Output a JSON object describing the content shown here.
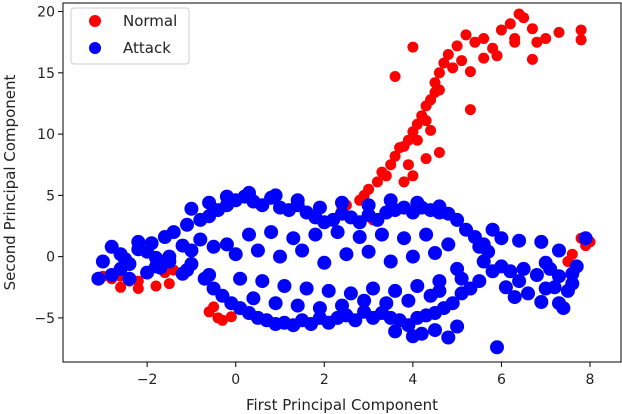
{
  "chart_data": {
    "type": "scatter",
    "title": "",
    "xlabel": "First Principal Component",
    "ylabel": "Second Principal Component",
    "xlim": [
      -3.9,
      8.7
    ],
    "ylim": [
      -8.6,
      20.7
    ],
    "xticks": [
      -2,
      0,
      2,
      4,
      6,
      8
    ],
    "yticks": [
      -5,
      0,
      5,
      10,
      15,
      20
    ],
    "legend_position": "top-left",
    "grid": false,
    "series": [
      {
        "name": "Normal",
        "color": "#ff0000",
        "points": [
          [
            5.0,
            17.2
          ],
          [
            5.2,
            18.1
          ],
          [
            5.4,
            17.5
          ],
          [
            5.6,
            16.2
          ],
          [
            5.8,
            17.0
          ],
          [
            6.0,
            18.5
          ],
          [
            6.2,
            19.0
          ],
          [
            6.4,
            19.8
          ],
          [
            6.5,
            19.5
          ],
          [
            6.7,
            18.6
          ],
          [
            7.0,
            17.8
          ],
          [
            7.3,
            18.3
          ],
          [
            7.8,
            18.5
          ],
          [
            7.8,
            17.7
          ],
          [
            4.8,
            16.5
          ],
          [
            4.7,
            15.8
          ],
          [
            4.6,
            15.0
          ],
          [
            4.5,
            14.2
          ],
          [
            4.5,
            13.4
          ],
          [
            4.4,
            12.8
          ],
          [
            4.3,
            12.3
          ],
          [
            4.2,
            11.5
          ],
          [
            4.1,
            10.8
          ],
          [
            4.0,
            10.2
          ],
          [
            3.9,
            9.5
          ],
          [
            3.7,
            8.9
          ],
          [
            3.6,
            8.2
          ],
          [
            3.5,
            7.5
          ],
          [
            3.3,
            6.9
          ],
          [
            3.2,
            6.1
          ],
          [
            3.0,
            5.5
          ],
          [
            2.9,
            5.0
          ],
          [
            2.5,
            4.2
          ],
          [
            2.4,
            4.0
          ],
          [
            3.6,
            14.7
          ],
          [
            4.0,
            17.1
          ],
          [
            5.6,
            17.8
          ],
          [
            5.9,
            16.4
          ],
          [
            6.3,
            17.8
          ],
          [
            6.8,
            17.5
          ],
          [
            5.1,
            16.0
          ],
          [
            4.9,
            15.4
          ],
          [
            4.6,
            13.6
          ],
          [
            4.3,
            11.1
          ],
          [
            4.4,
            10.3
          ],
          [
            4.1,
            9.5
          ],
          [
            3.8,
            9.0
          ],
          [
            4.6,
            8.5
          ],
          [
            4.3,
            8.0
          ],
          [
            3.9,
            7.5
          ],
          [
            4.0,
            6.6
          ],
          [
            3.8,
            6.1
          ],
          [
            3.4,
            6.6
          ],
          [
            5.3,
            15.1
          ],
          [
            5.3,
            12.0
          ],
          [
            6.3,
            17.5
          ],
          [
            6.7,
            16.1
          ],
          [
            7.8,
            1.5
          ],
          [
            7.9,
            0.9
          ],
          [
            8.0,
            1.2
          ],
          [
            7.6,
            0.2
          ],
          [
            7.5,
            -0.4
          ],
          [
            -0.4,
            -5.0
          ],
          [
            -0.3,
            -5.2
          ],
          [
            -0.1,
            -4.9
          ],
          [
            -0.5,
            -4.1
          ],
          [
            -0.6,
            -4.5
          ],
          [
            -2.6,
            -2.5
          ],
          [
            -2.2,
            -2.6
          ],
          [
            -1.8,
            -2.4
          ],
          [
            -1.6,
            -1.3
          ],
          [
            -1.4,
            -1.1
          ],
          [
            -2.8,
            -1.8
          ],
          [
            -2.6,
            -1.6
          ],
          [
            -2.4,
            -2.0
          ],
          [
            -1.5,
            -2.2
          ],
          [
            -3.0,
            -1.6
          ],
          [
            -2.2,
            -2.0
          ],
          [
            2.8,
            4.6
          ],
          [
            3.1,
            3.0
          ]
        ]
      },
      {
        "name": "Attack",
        "color": "#0000ff",
        "points": [
          [
            -3.1,
            -1.8
          ],
          [
            -3.0,
            -0.4
          ],
          [
            -2.8,
            -1.5
          ],
          [
            -2.6,
            -1.0
          ],
          [
            -2.5,
            -0.2
          ],
          [
            -2.4,
            -1.8
          ],
          [
            -2.2,
            0.6
          ],
          [
            -2.0,
            -1.3
          ],
          [
            -1.9,
            1.1
          ],
          [
            -1.8,
            -0.8
          ],
          [
            -1.6,
            1.6
          ],
          [
            -1.5,
            -0.4
          ],
          [
            -1.4,
            2.0
          ],
          [
            -1.2,
            -1.4
          ],
          [
            -1.1,
            2.6
          ],
          [
            -1.0,
            -0.6
          ],
          [
            -0.8,
            3.0
          ],
          [
            -0.7,
            -1.8
          ],
          [
            -0.6,
            3.3
          ],
          [
            -0.5,
            -2.6
          ],
          [
            -0.4,
            3.8
          ],
          [
            -0.3,
            -3.2
          ],
          [
            -0.2,
            4.2
          ],
          [
            -0.1,
            -3.8
          ],
          [
            0.0,
            4.6
          ],
          [
            0.1,
            -4.2
          ],
          [
            0.2,
            4.9
          ],
          [
            0.3,
            -4.6
          ],
          [
            0.4,
            4.5
          ],
          [
            0.5,
            -5.0
          ],
          [
            0.6,
            4.2
          ],
          [
            0.7,
            -5.2
          ],
          [
            0.8,
            4.8
          ],
          [
            0.9,
            -5.5
          ],
          [
            1.0,
            4.0
          ],
          [
            1.1,
            -5.4
          ],
          [
            1.2,
            3.8
          ],
          [
            1.3,
            -5.6
          ],
          [
            1.4,
            4.2
          ],
          [
            1.5,
            -5.2
          ],
          [
            1.6,
            3.6
          ],
          [
            1.7,
            -5.5
          ],
          [
            1.8,
            3.2
          ],
          [
            1.9,
            -5.0
          ],
          [
            2.0,
            2.8
          ],
          [
            2.1,
            -5.4
          ],
          [
            2.2,
            3.0
          ],
          [
            2.3,
            -5.0
          ],
          [
            2.4,
            3.5
          ],
          [
            2.5,
            -4.8
          ],
          [
            2.6,
            3.2
          ],
          [
            2.7,
            -5.2
          ],
          [
            2.8,
            2.8
          ],
          [
            2.9,
            -4.5
          ],
          [
            3.0,
            3.4
          ],
          [
            3.1,
            -5.0
          ],
          [
            3.2,
            3.0
          ],
          [
            3.3,
            -4.6
          ],
          [
            3.4,
            3.6
          ],
          [
            3.5,
            -5.0
          ],
          [
            3.6,
            3.8
          ],
          [
            3.7,
            -5.2
          ],
          [
            3.8,
            4.0
          ],
          [
            3.9,
            -5.6
          ],
          [
            4.0,
            3.6
          ],
          [
            4.1,
            -5.0
          ],
          [
            4.2,
            4.0
          ],
          [
            4.3,
            -4.8
          ],
          [
            4.4,
            3.8
          ],
          [
            4.5,
            -4.6
          ],
          [
            4.6,
            3.6
          ],
          [
            4.7,
            -4.2
          ],
          [
            4.8,
            3.5
          ],
          [
            4.9,
            -3.8
          ],
          [
            5.0,
            3.0
          ],
          [
            5.1,
            -3.0
          ],
          [
            5.2,
            2.2
          ],
          [
            5.3,
            -2.6
          ],
          [
            5.4,
            1.6
          ],
          [
            5.5,
            -2.0
          ],
          [
            5.6,
            1.0
          ],
          [
            5.8,
            -1.2
          ],
          [
            5.6,
            -0.4
          ],
          [
            5.7,
            0.4
          ],
          [
            4.2,
            -6.3
          ],
          [
            4.5,
            -6.0
          ],
          [
            3.6,
            -6.1
          ],
          [
            4.0,
            -6.5
          ],
          [
            4.8,
            -6.6
          ],
          [
            5.0,
            -5.7
          ],
          [
            5.9,
            -7.4
          ],
          [
            6.3,
            -3.3
          ],
          [
            6.6,
            -3.0
          ],
          [
            6.9,
            -3.7
          ],
          [
            7.0,
            -2.6
          ],
          [
            7.2,
            -2.5
          ],
          [
            7.3,
            -3.8
          ],
          [
            7.4,
            -4.2
          ],
          [
            7.6,
            -1.4
          ],
          [
            7.7,
            -0.8
          ],
          [
            7.9,
            1.5
          ],
          [
            7.6,
            -2.2
          ],
          [
            7.3,
            -1.6
          ],
          [
            7.1,
            -1.0
          ],
          [
            6.4,
            -2.0
          ],
          [
            6.2,
            -1.2
          ],
          [
            6.0,
            -0.8
          ],
          [
            6.1,
            -2.5
          ],
          [
            6.5,
            -1.0
          ],
          [
            6.8,
            -1.5
          ],
          [
            7.0,
            -0.5
          ],
          [
            7.5,
            -2.8
          ],
          [
            6.4,
            1.3
          ],
          [
            6.9,
            1.2
          ],
          [
            7.3,
            0.5
          ],
          [
            6.0,
            1.5
          ],
          [
            5.8,
            2.2
          ],
          [
            5.5,
            0.8
          ],
          [
            5.0,
            -1.0
          ],
          [
            4.6,
            -2.0
          ],
          [
            -2.6,
            0.2
          ],
          [
            -2.0,
            0.4
          ],
          [
            -1.5,
            0.0
          ],
          [
            -1.0,
            0.5
          ],
          [
            -0.5,
            0.8
          ],
          [
            0.0,
            0.2
          ],
          [
            0.5,
            0.5
          ],
          [
            1.0,
            0.0
          ],
          [
            1.5,
            0.5
          ],
          [
            2.0,
            -0.5
          ],
          [
            2.5,
            0.2
          ],
          [
            3.0,
            0.4
          ],
          [
            3.5,
            -0.4
          ],
          [
            4.0,
            0.0
          ],
          [
            4.5,
            0.3
          ],
          [
            -2.8,
            0.8
          ],
          [
            -2.2,
            1.2
          ],
          [
            -1.8,
            -0.1
          ],
          [
            -1.2,
            0.9
          ],
          [
            -0.8,
            1.4
          ],
          [
            -0.2,
            1.0
          ],
          [
            0.3,
            1.8
          ],
          [
            0.8,
            2.0
          ],
          [
            1.3,
            1.5
          ],
          [
            1.8,
            1.8
          ],
          [
            2.3,
            2.0
          ],
          [
            2.8,
            1.6
          ],
          [
            3.3,
            1.8
          ],
          [
            3.8,
            1.5
          ],
          [
            4.3,
            1.8
          ],
          [
            4.8,
            1.0
          ],
          [
            -2.4,
            -0.6
          ],
          [
            -1.7,
            -0.9
          ],
          [
            -1.1,
            -1.1
          ],
          [
            -0.6,
            -1.5
          ],
          [
            0.1,
            -1.8
          ],
          [
            0.6,
            -2.0
          ],
          [
            1.1,
            -2.4
          ],
          [
            1.6,
            -2.6
          ],
          [
            2.1,
            -2.8
          ],
          [
            2.6,
            -3.0
          ],
          [
            3.1,
            -2.6
          ],
          [
            3.6,
            -2.8
          ],
          [
            4.1,
            -2.4
          ],
          [
            4.6,
            -2.8
          ],
          [
            5.1,
            -1.8
          ],
          [
            0.4,
            -3.4
          ],
          [
            0.9,
            -3.8
          ],
          [
            1.4,
            -4.0
          ],
          [
            1.9,
            -4.2
          ],
          [
            2.4,
            -4.0
          ],
          [
            2.9,
            -3.6
          ],
          [
            3.4,
            -3.8
          ],
          [
            3.9,
            -3.6
          ],
          [
            4.4,
            -3.2
          ],
          [
            -1.0,
            3.9
          ],
          [
            -0.6,
            4.4
          ],
          [
            -0.2,
            4.9
          ],
          [
            0.3,
            5.2
          ],
          [
            0.9,
            5.0
          ],
          [
            1.4,
            4.6
          ],
          [
            1.9,
            4.0
          ],
          [
            2.4,
            4.4
          ],
          [
            3.0,
            4.2
          ],
          [
            3.5,
            4.6
          ],
          [
            4.1,
            4.4
          ],
          [
            4.6,
            4.1
          ]
        ]
      }
    ]
  }
}
